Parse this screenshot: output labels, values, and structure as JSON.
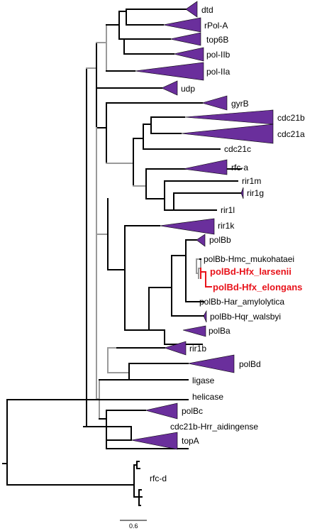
{
  "tree": {
    "labels": {
      "dtd": "dtd",
      "rpol_a": "rPol-A",
      "top6b": "top6B",
      "pol_iib": "pol-IIb",
      "pol_iia": "pol-IIa",
      "udp": "udp",
      "gyrb": "gyrB",
      "cdc21b": "cdc21b",
      "cdc21a": "cdc21a",
      "cdc21c": "cdc21c",
      "rfc_a": "rfc-a",
      "rir1m": "rir1m",
      "rir1g": "rir1g",
      "rir1l": "rir1l",
      "rir1k": "rir1k",
      "polbb": "polBb",
      "polbb_hmc": "polBb-Hmc_mukohataei",
      "polbd_hfx_larsenii": "polBd-Hfx_larsenii",
      "polbd_hfx_elongans": "polBd-Hfx_elongans",
      "polbb_har": "polBb-Har_amylolytica",
      "polbb_hqr": "polBb-Hqr_walsbyi",
      "polba": "polBa",
      "rir1b": "rir1b",
      "polbd": "polBd",
      "ligase": "ligase",
      "helicase": "helicase",
      "polbc": "polBc",
      "cdc21b_hrr": "cdc21b-Hrr_aidingense",
      "topa": "topA",
      "rfc_d": "rfc-d"
    },
    "scale_bar": "0.6",
    "colors": {
      "clade_fill": "#6a2f9c",
      "branch": "#000000",
      "branch_support": "#9a9a9a",
      "highlight": "#e8131b"
    }
  }
}
